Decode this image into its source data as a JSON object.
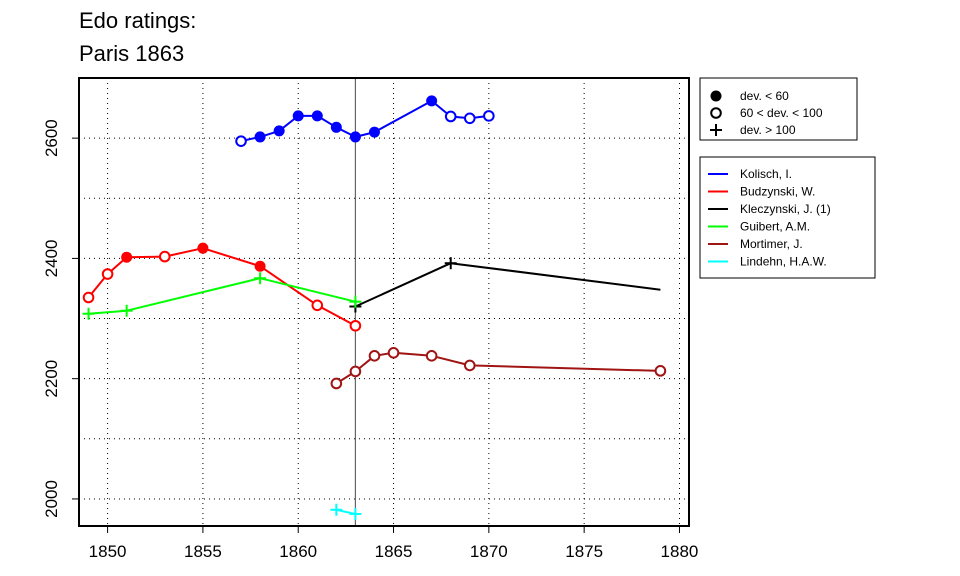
{
  "chart_data": {
    "type": "line",
    "title_lines": [
      "Edo ratings:",
      "Paris 1863"
    ],
    "xlabel": "",
    "ylabel": "",
    "xlim": [
      1848.5,
      1880.5
    ],
    "ylim": [
      1955,
      2700
    ],
    "x_ticks": [
      1850,
      1855,
      1860,
      1865,
      1870,
      1875,
      1880
    ],
    "y_ticks": [
      2000,
      2200,
      2400,
      2600
    ],
    "y_grid": [
      2000,
      2100,
      2200,
      2300,
      2400,
      2500,
      2600,
      2700
    ],
    "x_grid": [
      1850,
      1855,
      1860,
      1865,
      1870,
      1875,
      1880
    ],
    "grid": true,
    "reference_line_x": 1863,
    "marker_legend": [
      {
        "marker": "filled",
        "label": "dev. < 60"
      },
      {
        "marker": "open",
        "label": "60 < dev. < 100"
      },
      {
        "marker": "plus",
        "label": "dev. > 100"
      }
    ],
    "series": [
      {
        "name": "Kolisch, I.",
        "color": "#0000ff",
        "points": [
          {
            "x": 1857,
            "y": 2595,
            "m": "open"
          },
          {
            "x": 1858,
            "y": 2602,
            "m": "filled"
          },
          {
            "x": 1859,
            "y": 2612,
            "m": "filled"
          },
          {
            "x": 1860,
            "y": 2637,
            "m": "filled"
          },
          {
            "x": 1861,
            "y": 2637,
            "m": "filled"
          },
          {
            "x": 1862,
            "y": 2618,
            "m": "filled"
          },
          {
            "x": 1863,
            "y": 2602,
            "m": "filled"
          },
          {
            "x": 1864,
            "y": 2610,
            "m": "filled"
          },
          {
            "x": 1867,
            "y": 2662,
            "m": "filled"
          },
          {
            "x": 1868,
            "y": 2636,
            "m": "open"
          },
          {
            "x": 1869,
            "y": 2633,
            "m": "open"
          },
          {
            "x": 1870,
            "y": 2637,
            "m": "open"
          }
        ]
      },
      {
        "name": "Budzynski, W.",
        "color": "#ff0000",
        "points": [
          {
            "x": 1849,
            "y": 2335,
            "m": "open"
          },
          {
            "x": 1850,
            "y": 2374,
            "m": "open"
          },
          {
            "x": 1851,
            "y": 2402,
            "m": "filled"
          },
          {
            "x": 1853,
            "y": 2403,
            "m": "open"
          },
          {
            "x": 1855,
            "y": 2417,
            "m": "filled"
          },
          {
            "x": 1858,
            "y": 2387,
            "m": "filled"
          },
          {
            "x": 1861,
            "y": 2322,
            "m": "open"
          },
          {
            "x": 1863,
            "y": 2288,
            "m": "open"
          }
        ]
      },
      {
        "name": "Kleczynski, J. (1)",
        "color": "#000000",
        "points": [
          {
            "x": 1863,
            "y": 2320,
            "m": "plus"
          },
          {
            "x": 1868,
            "y": 2392,
            "m": "plus"
          },
          {
            "x": 1879,
            "y": 2348,
            "m": "none"
          }
        ]
      },
      {
        "name": "Guibert, A.M.",
        "color": "#00ff00",
        "points": [
          {
            "x": 1849,
            "y": 2308,
            "m": "plus"
          },
          {
            "x": 1851,
            "y": 2313,
            "m": "plus"
          },
          {
            "x": 1858,
            "y": 2367,
            "m": "plus"
          },
          {
            "x": 1863,
            "y": 2328,
            "m": "plus"
          }
        ]
      },
      {
        "name": "Mortimer, J.",
        "color": "#a01414",
        "points": [
          {
            "x": 1862,
            "y": 2192,
            "m": "open"
          },
          {
            "x": 1863,
            "y": 2212,
            "m": "open"
          },
          {
            "x": 1864,
            "y": 2238,
            "m": "open"
          },
          {
            "x": 1865,
            "y": 2243,
            "m": "open"
          },
          {
            "x": 1867,
            "y": 2238,
            "m": "open"
          },
          {
            "x": 1869,
            "y": 2222,
            "m": "open"
          },
          {
            "x": 1879,
            "y": 2213,
            "m": "open"
          }
        ]
      },
      {
        "name": "Lindehn, H.A.W.",
        "color": "#00ffff",
        "points": [
          {
            "x": 1862,
            "y": 1982,
            "m": "plus"
          },
          {
            "x": 1863,
            "y": 1975,
            "m": "plus"
          }
        ]
      }
    ]
  }
}
